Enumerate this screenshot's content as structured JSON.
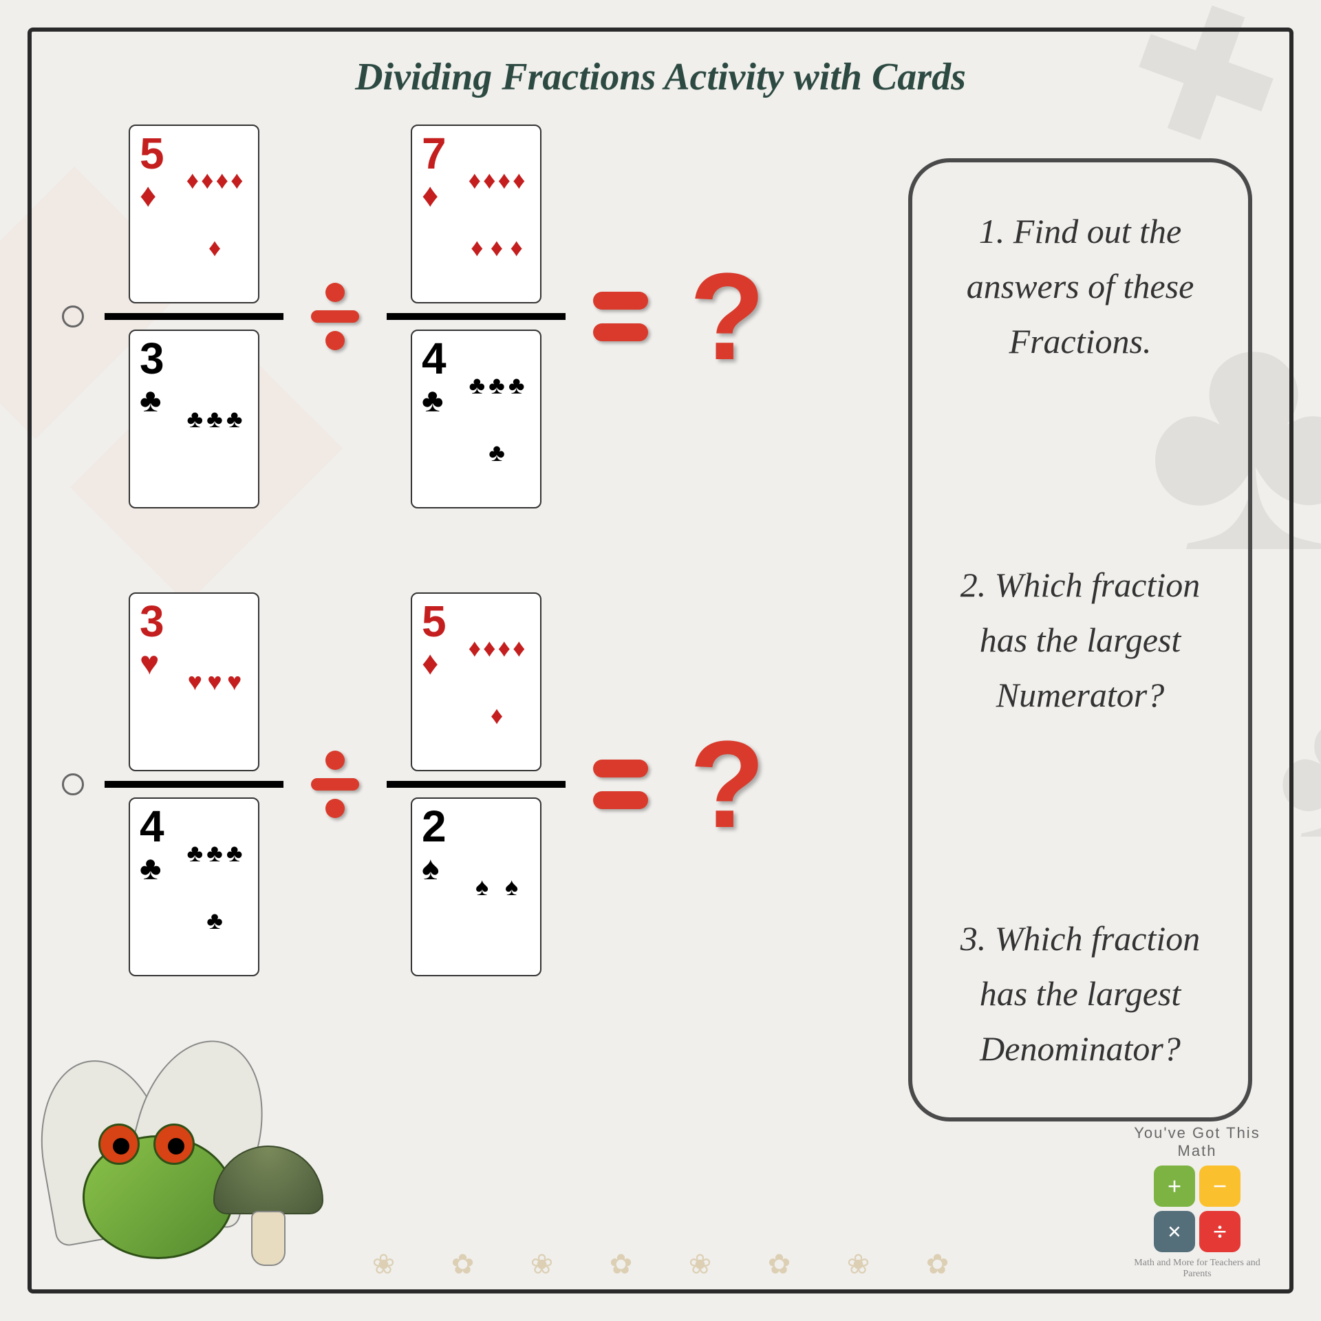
{
  "title": "Dividing Fractions Activity with Cards",
  "colors": {
    "title": "#2d4a42",
    "accent_red": "#d93a2b",
    "card_red": "#c41e1e",
    "card_black": "#000000",
    "background": "#f0efec",
    "frame": "#2a2a2a",
    "box_border": "#4a4a4a"
  },
  "problems": [
    {
      "frac1": {
        "num": {
          "rank": "5",
          "suit": "diamond",
          "color": "red",
          "pips": 5
        },
        "den": {
          "rank": "3",
          "suit": "club",
          "color": "black",
          "pips": 3
        }
      },
      "frac2": {
        "num": {
          "rank": "7",
          "suit": "diamond",
          "color": "red",
          "pips": 7
        },
        "den": {
          "rank": "4",
          "suit": "club",
          "color": "black",
          "pips": 4
        }
      },
      "result": "?"
    },
    {
      "frac1": {
        "num": {
          "rank": "3",
          "suit": "heart",
          "color": "red",
          "pips": 3
        },
        "den": {
          "rank": "4",
          "suit": "club",
          "color": "black",
          "pips": 4
        }
      },
      "frac2": {
        "num": {
          "rank": "5",
          "suit": "diamond",
          "color": "red",
          "pips": 5
        },
        "den": {
          "rank": "2",
          "suit": "spade",
          "color": "black",
          "pips": 2
        }
      },
      "result": "?"
    }
  ],
  "suits": {
    "diamond": "♦",
    "club": "♣",
    "heart": "♥",
    "spade": "♠"
  },
  "questions": [
    "1. Find out the answers of these Fractions.",
    "2. Which fraction has the largest Numerator?",
    "3. Which fraction has the largest Denominator?"
  ],
  "logo": {
    "text": "You've Got This Math",
    "tagline": "Math and More for Teachers and Parents",
    "cells": [
      {
        "sym": "+",
        "bg": "#7cb342"
      },
      {
        "sym": "−",
        "bg": "#fbc02d"
      },
      {
        "sym": "×",
        "bg": "#546e7a"
      },
      {
        "sym": "÷",
        "bg": "#e53935"
      }
    ]
  }
}
